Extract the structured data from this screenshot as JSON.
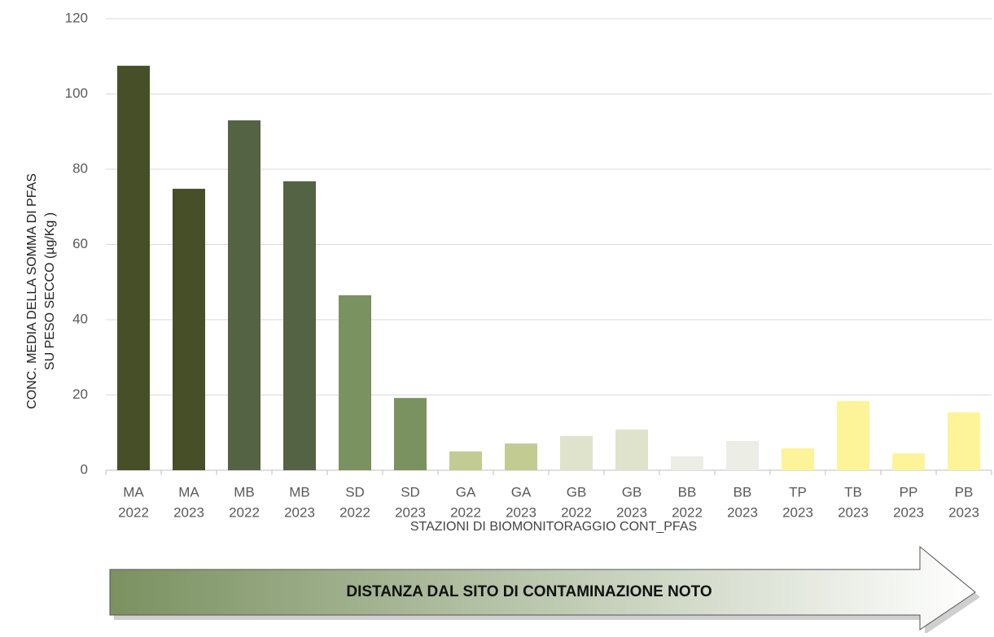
{
  "chart_data": {
    "type": "bar",
    "categories": [
      [
        "MA",
        "2022"
      ],
      [
        "MA",
        "2023"
      ],
      [
        "MB",
        "2022"
      ],
      [
        "MB",
        "2023"
      ],
      [
        "SD",
        "2022"
      ],
      [
        "SD",
        "2023"
      ],
      [
        "GA",
        "2022"
      ],
      [
        "GA",
        "2023"
      ],
      [
        "GB",
        "2022"
      ],
      [
        "GB",
        "2023"
      ],
      [
        "BB",
        "2022"
      ],
      [
        "BB",
        "2023"
      ],
      [
        "TP",
        "2023"
      ],
      [
        "TB",
        "2023"
      ],
      [
        "PP",
        "2023"
      ],
      [
        "PB",
        "2023"
      ]
    ],
    "values": [
      107.5,
      74.8,
      93,
      76.8,
      46.5,
      19.2,
      5,
      7.1,
      9.1,
      10.8,
      3.7,
      7.8,
      5.8,
      18.4,
      4.5,
      15.4
    ],
    "colors": [
      "#464f27",
      "#464f27",
      "#546344",
      "#546344",
      "#7a9160",
      "#7a9160",
      "#c2cc92",
      "#c2cc92",
      "#dfe3cc",
      "#dfe3cc",
      "#eceee6",
      "#eceee6",
      "#fdf49a",
      "#fdf49a",
      "#fdf49a",
      "#fdf49a"
    ],
    "ylim": [
      0,
      120
    ],
    "yticks": [
      0,
      20,
      40,
      60,
      80,
      100,
      120
    ],
    "grid": true,
    "ylabel": [
      "CONC. MEDIA DELLA SOMMA DI PFAS",
      "SU PESO SECCO  (µg/Kg )"
    ],
    "xlabel": "STAZIONI DI BIOMONITORAGGIO CONT_PFAS",
    "annotation": "DISTANZA DAL SITO DI CONTAMINAZIONE NOTO"
  }
}
